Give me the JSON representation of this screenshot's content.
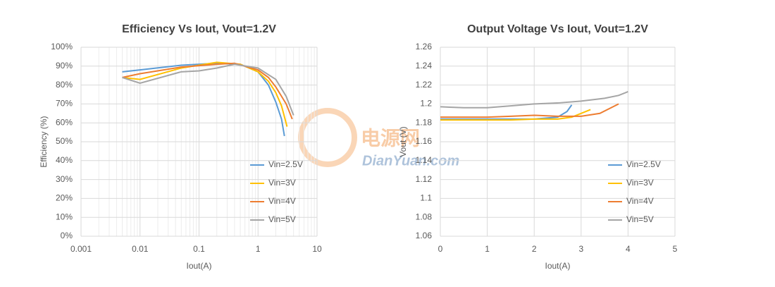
{
  "chart_data": [
    {
      "type": "line",
      "title": "Efficiency Vs Iout, Vout=1.2V",
      "xlabel": "Iout(A)",
      "ylabel": "Efficiency (%)",
      "xscale": "log",
      "xlim": [
        0.001,
        10
      ],
      "xticks": [
        0.001,
        0.01,
        0.1,
        1,
        10
      ],
      "ylim": [
        0,
        100
      ],
      "yticks": [
        {
          "value": 0,
          "label": "0%"
        },
        {
          "value": 10,
          "label": "10%"
        },
        {
          "value": 20,
          "label": "20%"
        },
        {
          "value": 30,
          "label": "30%"
        },
        {
          "value": 40,
          "label": "40%"
        },
        {
          "value": 50,
          "label": "50%"
        },
        {
          "value": 60,
          "label": "60%"
        },
        {
          "value": 70,
          "label": "70%"
        },
        {
          "value": 80,
          "label": "80%"
        },
        {
          "value": 90,
          "label": "90%"
        },
        {
          "value": 100,
          "label": "100%"
        }
      ],
      "grid": true,
      "legend": "lower right",
      "series": [
        {
          "name": "Vin=2.5V",
          "color": "#5b9bd5",
          "x": [
            0.005,
            0.01,
            0.05,
            0.2,
            0.5,
            1,
            1.5,
            2,
            2.5,
            2.8
          ],
          "values": [
            87,
            88,
            90.5,
            91.5,
            91,
            87,
            80,
            71,
            62,
            53
          ]
        },
        {
          "name": "Vin=3V",
          "color": "#ffc000",
          "x": [
            0.005,
            0.01,
            0.05,
            0.2,
            0.5,
            1,
            1.5,
            2,
            2.5,
            3.1
          ],
          "values": [
            84,
            83,
            89,
            92,
            91,
            87,
            82,
            76,
            69,
            58
          ]
        },
        {
          "name": "Vin=4V",
          "color": "#ed7d31",
          "x": [
            0.005,
            0.01,
            0.05,
            0.2,
            0.4,
            1,
            1.5,
            2,
            3,
            3.8
          ],
          "values": [
            84,
            86,
            89.5,
            91,
            91.5,
            88,
            84,
            79,
            70,
            62
          ]
        },
        {
          "name": "Vin=5V",
          "color": "#a5a5a5",
          "x": [
            0.005,
            0.01,
            0.05,
            0.1,
            0.2,
            0.4,
            1,
            2,
            3,
            4
          ],
          "values": [
            84,
            81,
            87,
            87.5,
            89,
            91,
            89,
            83,
            74,
            64
          ]
        }
      ]
    },
    {
      "type": "line",
      "title": "Output Voltage Vs Iout, Vout=1.2V",
      "xlabel": "Iout(A)",
      "ylabel": "Vout (V)",
      "xscale": "linear",
      "xlim": [
        0,
        5
      ],
      "xticks": [
        0,
        1,
        2,
        3,
        4,
        5
      ],
      "ylim": [
        1.06,
        1.26
      ],
      "yticks": [
        1.06,
        1.08,
        1.1,
        1.12,
        1.14,
        1.16,
        1.18,
        1.2,
        1.22,
        1.24,
        1.26
      ],
      "grid": true,
      "legend": "lower right",
      "series": [
        {
          "name": "Vin=2.5V",
          "color": "#5b9bd5",
          "x": [
            0,
            0.5,
            1,
            1.5,
            2,
            2.5,
            2.7,
            2.8
          ],
          "values": [
            1.184,
            1.184,
            1.184,
            1.184,
            1.184,
            1.186,
            1.192,
            1.199
          ]
        },
        {
          "name": "Vin=3V",
          "color": "#ffc000",
          "x": [
            0,
            0.5,
            1,
            1.5,
            2,
            2.5,
            2.8,
            3,
            3.2
          ],
          "values": [
            1.183,
            1.183,
            1.183,
            1.183,
            1.184,
            1.184,
            1.186,
            1.19,
            1.194
          ]
        },
        {
          "name": "Vin=4V",
          "color": "#ed7d31",
          "x": [
            0,
            0.5,
            1,
            1.5,
            2,
            2.5,
            3,
            3.4,
            3.8
          ],
          "values": [
            1.186,
            1.186,
            1.186,
            1.187,
            1.188,
            1.187,
            1.187,
            1.19,
            1.2
          ]
        },
        {
          "name": "Vin=5V",
          "color": "#a5a5a5",
          "x": [
            0,
            0.5,
            1,
            1.5,
            2,
            2.5,
            3,
            3.5,
            3.8,
            4
          ],
          "values": [
            1.197,
            1.196,
            1.196,
            1.198,
            1.2,
            1.201,
            1.203,
            1.206,
            1.209,
            1.213
          ]
        }
      ]
    }
  ],
  "watermark": {
    "name": "电源网",
    "url": "DianYuan.com"
  }
}
